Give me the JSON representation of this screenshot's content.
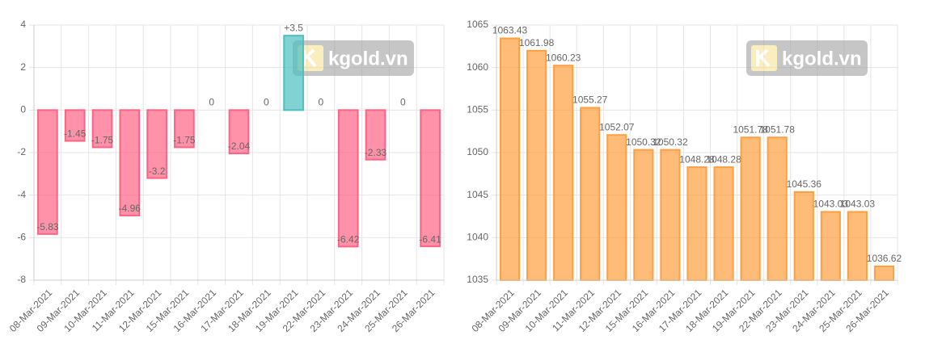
{
  "chart_data": [
    {
      "type": "bar",
      "categories": [
        "08-Mar-2021",
        "09-Mar-2021",
        "10-Mar-2021",
        "11-Mar-2021",
        "12-Mar-2021",
        "15-Mar-2021",
        "16-Mar-2021",
        "17-Mar-2021",
        "18-Mar-2021",
        "19-Mar-2021",
        "22-Mar-2021",
        "23-Mar-2021",
        "24-Mar-2021",
        "25-Mar-2021",
        "26-Mar-2021"
      ],
      "values": [
        -5.83,
        -1.45,
        -1.75,
        -4.96,
        -3.2,
        -1.75,
        0,
        -2.04,
        0,
        3.5,
        0,
        -6.42,
        -2.33,
        0,
        -6.41
      ],
      "value_labels": [
        "-5.83",
        "-1.45",
        "-1.75",
        "-4.96",
        "-3.2",
        "-1.75",
        "0",
        "-2.04",
        "0",
        "+3.5",
        "0",
        "-6.42",
        "-2.33",
        "0",
        "-6.41"
      ],
      "positive_color": "#4bc0c0",
      "negative_color": "#ff6384",
      "ylim": [
        -8,
        4
      ],
      "yticks": [
        -8,
        -6,
        -4,
        -2,
        0,
        2,
        4
      ],
      "grid": true,
      "watermark": "kgold.vn"
    },
    {
      "type": "bar",
      "categories": [
        "08-Mar-2021",
        "09-Mar-2021",
        "10-Mar-2021",
        "11-Mar-2021",
        "12-Mar-2021",
        "15-Mar-2021",
        "16-Mar-2021",
        "17-Mar-2021",
        "18-Mar-2021",
        "19-Mar-2021",
        "22-Mar-2021",
        "23-Mar-2021",
        "24-Mar-2021",
        "25-Mar-2021",
        "26-Mar-2021"
      ],
      "values": [
        1063.43,
        1061.98,
        1060.23,
        1055.27,
        1052.07,
        1050.32,
        1050.32,
        1048.28,
        1048.28,
        1051.78,
        1051.78,
        1045.36,
        1043.03,
        1043.03,
        1036.62
      ],
      "color": "#ff9f40",
      "ylim": [
        1035,
        1065
      ],
      "yticks": [
        1035,
        1040,
        1045,
        1050,
        1055,
        1060,
        1065
      ],
      "grid": true,
      "watermark": "kgold.vn"
    }
  ]
}
